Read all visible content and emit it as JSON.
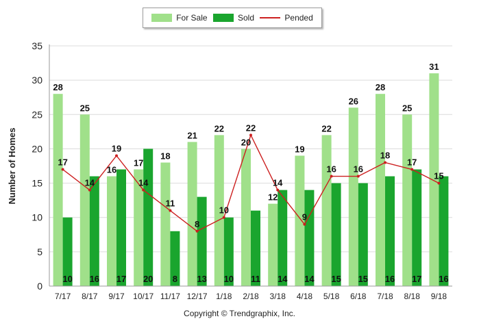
{
  "chart_data": {
    "type": "bar",
    "ylabel": "Number of Homes",
    "ylim": [
      0,
      35
    ],
    "yticks": [
      0,
      5,
      10,
      15,
      20,
      25,
      30,
      35
    ],
    "grid": true,
    "legend_position": "top-center",
    "categories": [
      "7/17",
      "8/17",
      "9/17",
      "10/17",
      "11/17",
      "12/17",
      "1/18",
      "2/18",
      "3/18",
      "4/18",
      "5/18",
      "6/18",
      "7/18",
      "8/18",
      "9/18"
    ],
    "series": [
      {
        "name": "For Sale",
        "type": "bar",
        "color": "#a0e08a",
        "values": [
          28,
          25,
          16,
          17,
          18,
          21,
          22,
          20,
          12,
          19,
          22,
          26,
          28,
          25,
          31
        ]
      },
      {
        "name": "Sold",
        "type": "bar",
        "color": "#1aa52e",
        "values": [
          10,
          16,
          17,
          20,
          8,
          13,
          10,
          11,
          14,
          14,
          15,
          15,
          16,
          17,
          16
        ]
      },
      {
        "name": "Pended",
        "type": "line",
        "color": "#cc1f1f",
        "values": [
          17,
          14,
          19,
          14,
          11,
          8,
          10,
          22,
          14,
          9,
          16,
          16,
          18,
          17,
          15
        ]
      }
    ],
    "footer": "Copyright © Trendgraphix, Inc."
  }
}
